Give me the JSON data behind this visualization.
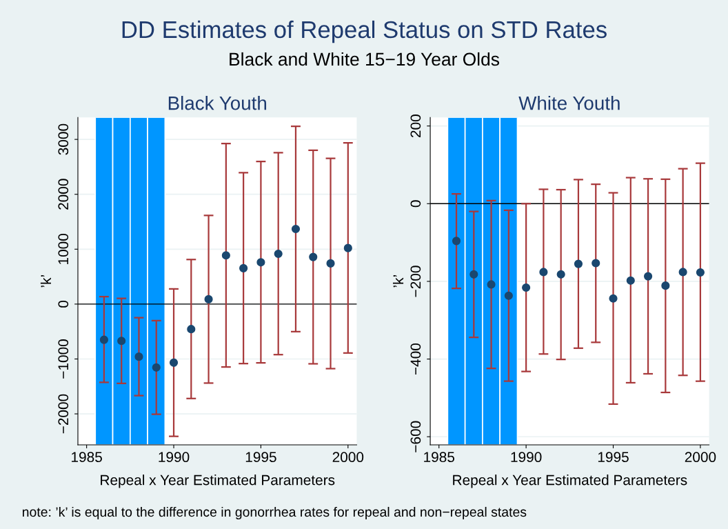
{
  "chart_data": [
    {
      "type": "scatter",
      "title": "Black Youth",
      "xlabel": "Repeal x Year Estimated Parameters",
      "ylabel": "’k’",
      "annotations": [
        "DD Estimates of Repeal Status on STD Rates",
        "Black and White 15−19 Year Olds",
        "note: ’k’ is equal to the difference in gonorrhea rates for repeal and non−repeal states"
      ],
      "x": [
        1986,
        1987,
        1988,
        1989,
        1990,
        1991,
        1992,
        1993,
        1994,
        1995,
        1996,
        1997,
        1998,
        1999,
        2000
      ],
      "values": [
        -650,
        -670,
        -958,
        -1155,
        -1067,
        -456,
        88,
        887,
        653,
        761,
        916,
        1368,
        858,
        741,
        1021
      ],
      "errors": [
        [
          -1427,
          134
        ],
        [
          -1444,
          105
        ],
        [
          -1669,
          -247
        ],
        [
          -2008,
          -301
        ],
        [
          -2410,
          276
        ],
        [
          -1720,
          812
        ],
        [
          -1439,
          1615
        ],
        [
          -1146,
          2925
        ],
        [
          -1084,
          2393
        ],
        [
          -1071,
          2598
        ],
        [
          -921,
          2757
        ],
        [
          -502,
          3238
        ],
        [
          -1088,
          2803
        ],
        [
          -1176,
          2653
        ],
        [
          -891,
          2937
        ]
      ],
      "color": "#1a476f",
      "marker": "circle",
      "xlim": [
        1984.5,
        2000.5
      ],
      "xticks": [
        1985,
        1990,
        1995,
        2000
      ],
      "ylim": [
        -2565,
        3400
      ],
      "yticks": [
        {
          "value": -2000,
          "label": "−2000"
        },
        {
          "value": -1000,
          "label": "−1000"
        },
        0,
        1000,
        2000,
        3000
      ],
      "grid": "y",
      "ref_lines": [
        {
          "axis": "y",
          "value": 0,
          "color": "#000000"
        }
      ],
      "bands": [
        {
          "axis": "x",
          "from": 1985.5,
          "to": 1986.5,
          "color": "#0096ff"
        },
        {
          "axis": "x",
          "from": 1986.5,
          "to": 1987.5,
          "color": "#0096ff"
        },
        {
          "axis": "x",
          "from": 1987.5,
          "to": 1988.5,
          "color": "#0096ff"
        },
        {
          "axis": "x",
          "from": 1988.5,
          "to": 1989.5,
          "color": "#0096ff"
        }
      ]
    },
    {
      "type": "scatter",
      "title": "White Youth",
      "xlabel": "Repeal x Year Estimated Parameters",
      "ylabel": "’k’",
      "x": [
        1986,
        1987,
        1988,
        1989,
        1990,
        1991,
        1992,
        1993,
        1994,
        1995,
        1996,
        1997,
        1998,
        1999,
        2000
      ],
      "values": [
        -96,
        -182,
        -208,
        -237,
        -216,
        -176,
        -182,
        -155,
        -153,
        -244,
        -198,
        -187,
        -211,
        -176,
        -177
      ],
      "errors": [
        [
          -218,
          25
        ],
        [
          -344,
          -20
        ],
        [
          -424,
          8
        ],
        [
          -457,
          -17
        ],
        [
          -432,
          0
        ],
        [
          -387,
          37
        ],
        [
          -401,
          36
        ],
        [
          -372,
          62
        ],
        [
          -357,
          50
        ],
        [
          -516,
          28
        ],
        [
          -461,
          67
        ],
        [
          -438,
          64
        ],
        [
          -486,
          63
        ],
        [
          -442,
          90
        ],
        [
          -457,
          104
        ]
      ],
      "color": "#1a476f",
      "marker": "circle",
      "xlim": [
        1984.5,
        2000.5
      ],
      "xticks": [
        1985,
        1990,
        1995,
        2000
      ],
      "ylim": [
        -621,
        222
      ],
      "yticks": [
        {
          "value": -600,
          "label": "−600"
        },
        {
          "value": -400,
          "label": "−400"
        },
        {
          "value": -200,
          "label": "−200"
        },
        0,
        200
      ],
      "grid": "y",
      "ref_lines": [
        {
          "axis": "y",
          "value": 0,
          "color": "#000000"
        }
      ],
      "bands": [
        {
          "axis": "x",
          "from": 1985.5,
          "to": 1986.5,
          "color": "#0096ff"
        },
        {
          "axis": "x",
          "from": 1986.5,
          "to": 1987.5,
          "color": "#0096ff"
        },
        {
          "axis": "x",
          "from": 1987.5,
          "to": 1988.5,
          "color": "#0096ff"
        },
        {
          "axis": "x",
          "from": 1988.5,
          "to": 1989.5,
          "color": "#0096ff"
        }
      ]
    }
  ]
}
